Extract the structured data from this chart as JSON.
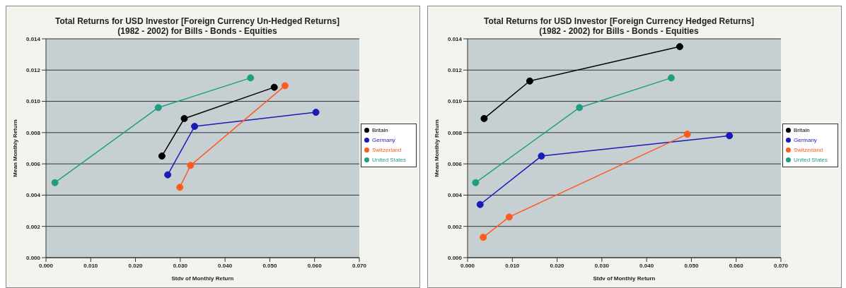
{
  "chart_data": [
    {
      "type": "line",
      "title": "Total Returns for USD Investor [Foreign Currency Un-Hedged Returns]\n(1982 - 2002) for Bills - Bonds - Equities",
      "xlabel": "Stdv of Monthly Return",
      "ylabel": "Mean Monthly Return",
      "xlim": [
        0,
        0.07
      ],
      "xticks": [
        {
          "value": 0,
          "label": "0.000"
        },
        {
          "value": 0.01,
          "label": "0.010"
        },
        {
          "value": 0.02,
          "label": "0.020"
        },
        {
          "value": 0.03,
          "label": "0.030"
        },
        {
          "value": 0.04,
          "label": "0.040"
        },
        {
          "value": 0.05,
          "label": "0.050"
        },
        {
          "value": 0.06,
          "label": "0.060"
        },
        {
          "value": 0.07,
          "label": "0.070"
        }
      ],
      "ylim": [
        0,
        0.014
      ],
      "yticks": [
        {
          "value": 0,
          "label": "0.000"
        },
        {
          "value": 0.002,
          "label": "0.002"
        },
        {
          "value": 0.004,
          "label": "0.004"
        },
        {
          "value": 0.006,
          "label": "0.006"
        },
        {
          "value": 0.008,
          "label": "0.008"
        },
        {
          "value": 0.01,
          "label": "0.010"
        },
        {
          "value": 0.012,
          "label": "0.012"
        },
        {
          "value": 0.014,
          "label": "0.014"
        }
      ],
      "grid": "y",
      "legend": "right",
      "marker": "circle",
      "series": [
        {
          "name": "Britain",
          "color": "#000000",
          "x": [
            0.0259,
            0.0309,
            0.051
          ],
          "values": [
            0.0065,
            0.0089,
            0.0109
          ]
        },
        {
          "name": "Germany",
          "color": "#1a1ab8",
          "x": [
            0.0272,
            0.0332,
            0.0603
          ],
          "values": [
            0.0053,
            0.0084,
            0.0093
          ]
        },
        {
          "name": "Switzerland",
          "color": "#ff5a1f",
          "x": [
            0.0299,
            0.0323,
            0.0534
          ],
          "values": [
            0.0045,
            0.0059,
            0.011
          ]
        },
        {
          "name": "United States",
          "color": "#1f9f7f",
          "x": [
            0.002,
            0.0251,
            0.0457
          ],
          "values": [
            0.0048,
            0.0096,
            0.0115
          ]
        }
      ]
    },
    {
      "type": "line",
      "title": "Total Returns for USD Investor [Foreign Currency Hedged Returns]\n(1982 - 2002) for Bills - Bonds - Equities",
      "xlabel": "Stdv of Monthly Return",
      "ylabel": "Mean Monthly Return",
      "xlim": [
        0,
        0.07
      ],
      "xticks": [
        {
          "value": 0,
          "label": "0.000"
        },
        {
          "value": 0.01,
          "label": "0.010"
        },
        {
          "value": 0.02,
          "label": "0.020"
        },
        {
          "value": 0.03,
          "label": "0.030"
        },
        {
          "value": 0.04,
          "label": "0.040"
        },
        {
          "value": 0.05,
          "label": "0.050"
        },
        {
          "value": 0.06,
          "label": "0.060"
        },
        {
          "value": 0.07,
          "label": "0.070"
        }
      ],
      "ylim": [
        0,
        0.014
      ],
      "yticks": [
        {
          "value": 0,
          "label": "0.000"
        },
        {
          "value": 0.002,
          "label": "0.002"
        },
        {
          "value": 0.004,
          "label": "0.004"
        },
        {
          "value": 0.006,
          "label": "0.006"
        },
        {
          "value": 0.008,
          "label": "0.008"
        },
        {
          "value": 0.01,
          "label": "0.010"
        },
        {
          "value": 0.012,
          "label": "0.012"
        },
        {
          "value": 0.014,
          "label": "0.014"
        }
      ],
      "grid": "y",
      "legend": "right",
      "marker": "circle",
      "series": [
        {
          "name": "Britain",
          "color": "#000000",
          "x": [
            0.0037,
            0.0139,
            0.0474
          ],
          "values": [
            0.0089,
            0.0113,
            0.0135
          ]
        },
        {
          "name": "Germany",
          "color": "#1a1ab8",
          "x": [
            0.0028,
            0.0165,
            0.0585
          ],
          "values": [
            0.0034,
            0.0065,
            0.0078
          ]
        },
        {
          "name": "Switzerland",
          "color": "#ff5a1f",
          "x": [
            0.0035,
            0.0093,
            0.0491
          ],
          "values": [
            0.0013,
            0.0026,
            0.0079
          ]
        },
        {
          "name": "United States",
          "color": "#1f9f7f",
          "x": [
            0.0018,
            0.025,
            0.0455
          ],
          "values": [
            0.0048,
            0.0096,
            0.0115
          ]
        }
      ]
    }
  ]
}
